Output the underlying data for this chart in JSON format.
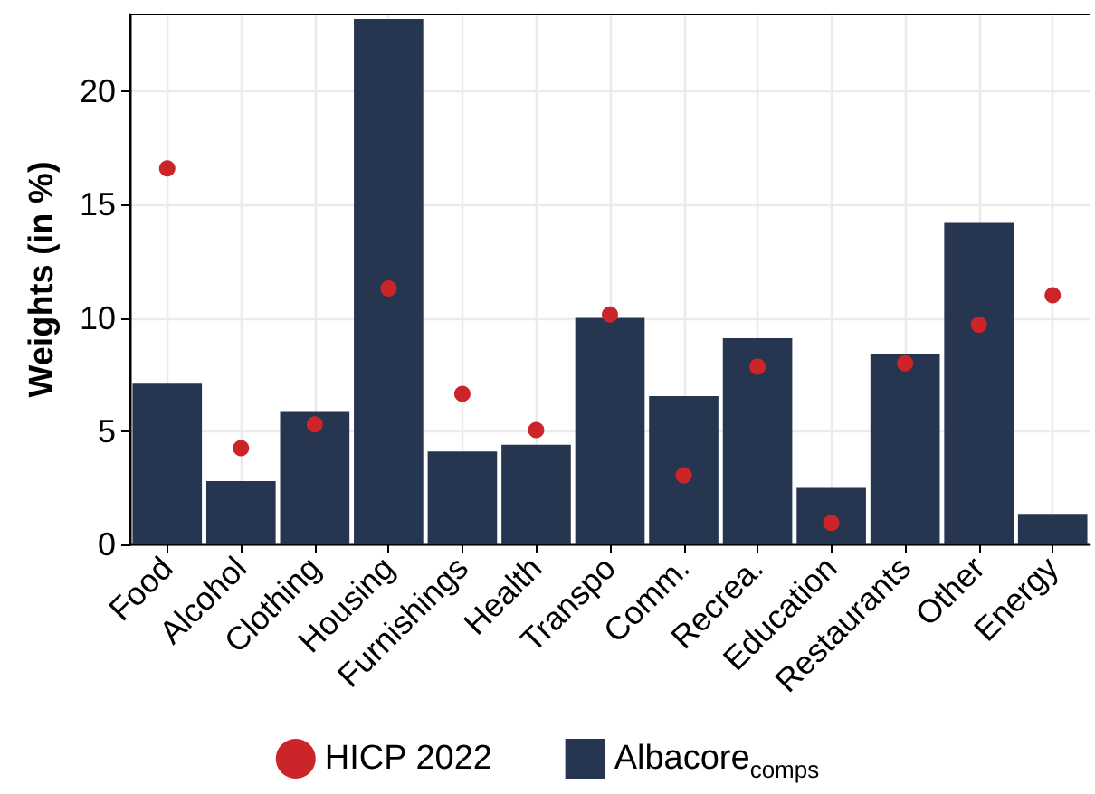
{
  "chart_data": {
    "type": "bar",
    "ylabel": "Weights (in %)",
    "categories": [
      "Food",
      "Alcohol",
      "Clothing",
      "Housing",
      "Furnishings",
      "Health",
      "Transpo",
      "Comm.",
      "Recrea.",
      "Education",
      "Restaurants",
      "Other",
      "Energy"
    ],
    "series": [
      {
        "name": "HICP 2022",
        "type": "scatter",
        "color": "#cc2529",
        "x": [
          "Food",
          "Alcohol",
          "Clothing",
          "Housing",
          "Furnishings",
          "Health",
          "Transpo",
          "Comm.",
          "Recrea.",
          "Education",
          "Restaurants",
          "Other",
          "Energy"
        ],
        "values": [
          16.6,
          4.25,
          5.3,
          11.3,
          6.65,
          5.05,
          10.15,
          3.05,
          7.85,
          0.95,
          8.0,
          9.7,
          11.0
        ]
      },
      {
        "name": "Albacore$_{comps}$",
        "color": "#263550",
        "values": [
          7.1,
          2.8,
          5.85,
          23.2,
          4.1,
          4.4,
          10.0,
          6.55,
          9.1,
          2.5,
          8.4,
          14.2,
          1.35
        ]
      }
    ],
    "ylim": [
      0,
      23.4
    ],
    "yticks": [
      0,
      5,
      10,
      15,
      20
    ],
    "grid": true,
    "legend": "bottom",
    "marker": "circle"
  }
}
